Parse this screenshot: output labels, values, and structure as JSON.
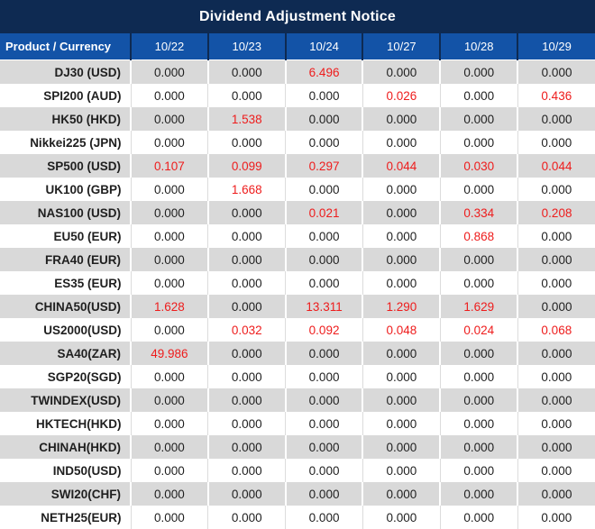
{
  "title": "Dividend Adjustment Notice",
  "colors": {
    "title_bar_bg": "#0e2a52",
    "header_bg": "#1353a7",
    "header_text": "#ffffff",
    "alt_row_bg": "#d9d9d9",
    "row_bg": "#ffffff",
    "value_text": "#1f1f1f",
    "highlight_red": "#ee1c1c"
  },
  "table": {
    "product_header": "Product / Currency",
    "date_headers": [
      "10/22",
      "10/23",
      "10/24",
      "10/27",
      "10/28",
      "10/29"
    ],
    "rows": [
      {
        "product": "DJ30 (USD)",
        "values": [
          "0.000",
          "0.000",
          "6.496",
          "0.000",
          "0.000",
          "0.000"
        ]
      },
      {
        "product": "SPI200 (AUD)",
        "values": [
          "0.000",
          "0.000",
          "0.000",
          "0.026",
          "0.000",
          "0.436"
        ]
      },
      {
        "product": "HK50 (HKD)",
        "values": [
          "0.000",
          "1.538",
          "0.000",
          "0.000",
          "0.000",
          "0.000"
        ]
      },
      {
        "product": "Nikkei225 (JPN)",
        "values": [
          "0.000",
          "0.000",
          "0.000",
          "0.000",
          "0.000",
          "0.000"
        ]
      },
      {
        "product": "SP500 (USD)",
        "values": [
          "0.107",
          "0.099",
          "0.297",
          "0.044",
          "0.030",
          "0.044"
        ]
      },
      {
        "product": "UK100 (GBP)",
        "values": [
          "0.000",
          "1.668",
          "0.000",
          "0.000",
          "0.000",
          "0.000"
        ]
      },
      {
        "product": "NAS100 (USD)",
        "values": [
          "0.000",
          "0.000",
          "0.021",
          "0.000",
          "0.334",
          "0.208"
        ]
      },
      {
        "product": "EU50 (EUR)",
        "values": [
          "0.000",
          "0.000",
          "0.000",
          "0.000",
          "0.868",
          "0.000"
        ]
      },
      {
        "product": "FRA40 (EUR)",
        "values": [
          "0.000",
          "0.000",
          "0.000",
          "0.000",
          "0.000",
          "0.000"
        ]
      },
      {
        "product": "ES35 (EUR)",
        "values": [
          "0.000",
          "0.000",
          "0.000",
          "0.000",
          "0.000",
          "0.000"
        ]
      },
      {
        "product": "CHINA50(USD)",
        "values": [
          "1.628",
          "0.000",
          "13.311",
          "1.290",
          "1.629",
          "0.000"
        ]
      },
      {
        "product": "US2000(USD)",
        "values": [
          "0.000",
          "0.032",
          "0.092",
          "0.048",
          "0.024",
          "0.068"
        ]
      },
      {
        "product": "SA40(ZAR)",
        "values": [
          "49.986",
          "0.000",
          "0.000",
          "0.000",
          "0.000",
          "0.000"
        ]
      },
      {
        "product": "SGP20(SGD)",
        "values": [
          "0.000",
          "0.000",
          "0.000",
          "0.000",
          "0.000",
          "0.000"
        ]
      },
      {
        "product": "TWINDEX(USD)",
        "values": [
          "0.000",
          "0.000",
          "0.000",
          "0.000",
          "0.000",
          "0.000"
        ]
      },
      {
        "product": "HKTECH(HKD)",
        "values": [
          "0.000",
          "0.000",
          "0.000",
          "0.000",
          "0.000",
          "0.000"
        ]
      },
      {
        "product": "CHINAH(HKD)",
        "values": [
          "0.000",
          "0.000",
          "0.000",
          "0.000",
          "0.000",
          "0.000"
        ]
      },
      {
        "product": "IND50(USD)",
        "values": [
          "0.000",
          "0.000",
          "0.000",
          "0.000",
          "0.000",
          "0.000"
        ]
      },
      {
        "product": "SWI20(CHF)",
        "values": [
          "0.000",
          "0.000",
          "0.000",
          "0.000",
          "0.000",
          "0.000"
        ]
      },
      {
        "product": "NETH25(EUR)",
        "values": [
          "0.000",
          "0.000",
          "0.000",
          "0.000",
          "0.000",
          "0.000"
        ]
      }
    ]
  }
}
